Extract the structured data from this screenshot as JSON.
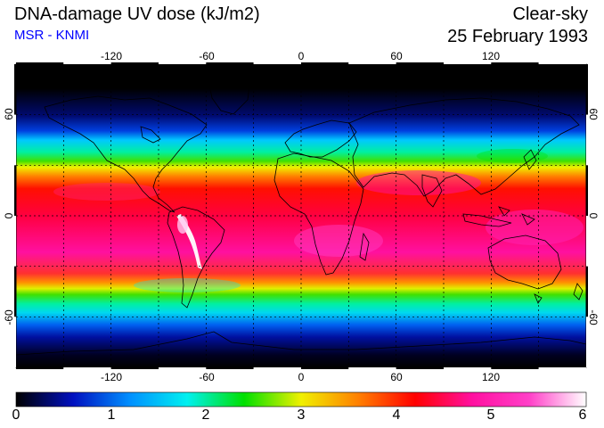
{
  "header": {
    "title": "DNA-damage UV dose (kJ/m2)",
    "source": "MSR - KNMI",
    "mode": "Clear-sky",
    "date": "25 February 1993"
  },
  "colors": {
    "source_text": "#0000ff",
    "gridline": "#000000",
    "coastline": "#000000"
  },
  "map": {
    "projection": "equirectangular",
    "lon_range": [
      -180,
      180
    ],
    "lat_range": [
      -90,
      90
    ],
    "grid": "dashed, every 30 degrees",
    "lon_tick_labels": [
      "-120",
      "-60",
      "0",
      "60",
      "120"
    ],
    "lat_tick_labels": [
      "60",
      "0",
      "-60"
    ]
  },
  "colorbar": {
    "min": 0,
    "max": 6,
    "tick_labels": [
      "0",
      "1",
      "2",
      "3",
      "4",
      "5",
      "6"
    ],
    "colormap": [
      "#000000",
      "#0010c0",
      "#0090ff",
      "#00f0f0",
      "#00e000",
      "#f0f000",
      "#ff8000",
      "#ff0000",
      "#ff10a0",
      "#ff40c8",
      "#ffffff"
    ]
  }
}
